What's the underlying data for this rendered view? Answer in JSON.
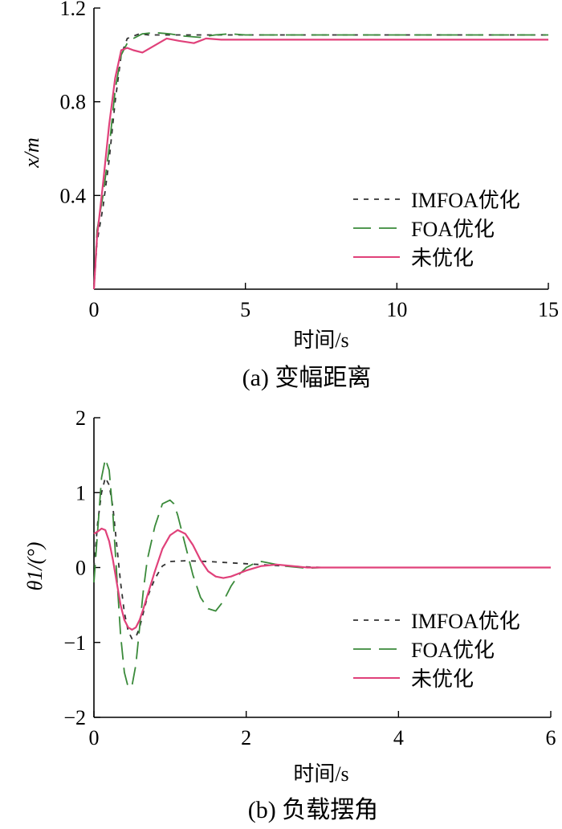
{
  "colors": {
    "imfoa": "#333333",
    "foa": "#3a8a3a",
    "none": "#e0417a",
    "axis": "#000000"
  },
  "chart_data": [
    {
      "type": "line",
      "caption": "(a)  变幅距离",
      "xlabel": "时间/s",
      "ylabel": "x/m",
      "xlim": [
        0,
        15
      ],
      "ylim": [
        0,
        1.2
      ],
      "xticks": [
        "0",
        "5",
        "10",
        "15"
      ],
      "yticks": [
        "0.4",
        "0.8",
        "1.2"
      ],
      "legend_position": "right, lower-middle",
      "series": [
        {
          "name": "IMFOA优化",
          "style": "dotted",
          "x": [
            0,
            0.1,
            0.3,
            0.5,
            0.7,
            0.9,
            1.1,
            1.3,
            1.5,
            1.8,
            2.0,
            3.0,
            5.0,
            10.0,
            15.0
          ],
          "y": [
            0,
            0.2,
            0.35,
            0.55,
            0.8,
            1.0,
            1.07,
            1.08,
            1.09,
            1.085,
            1.085,
            1.085,
            1.085,
            1.085,
            1.085
          ]
        },
        {
          "name": "FOA优化",
          "style": "dashed",
          "x": [
            0,
            0.1,
            0.3,
            0.5,
            0.7,
            0.9,
            1.1,
            1.3,
            1.6,
            2.0,
            2.5,
            3.0,
            3.5,
            4.0,
            4.5,
            5.0,
            10.0,
            15.0
          ],
          "y": [
            0,
            0.25,
            0.4,
            0.6,
            0.85,
            1.0,
            1.05,
            1.07,
            1.09,
            1.095,
            1.09,
            1.08,
            1.075,
            1.085,
            1.09,
            1.085,
            1.085,
            1.085
          ]
        },
        {
          "name": "未优化",
          "style": "solid",
          "x": [
            0,
            0.1,
            0.3,
            0.5,
            0.7,
            0.9,
            1.1,
            1.3,
            1.6,
            2.0,
            2.4,
            2.8,
            3.3,
            3.7,
            4.2,
            5.0,
            10.0,
            15.0
          ],
          "y": [
            0,
            0.22,
            0.45,
            0.7,
            0.9,
            1.02,
            1.03,
            1.02,
            1.01,
            1.04,
            1.07,
            1.06,
            1.05,
            1.07,
            1.065,
            1.065,
            1.065,
            1.065
          ]
        }
      ]
    },
    {
      "type": "line",
      "caption": "(b)  负载摆角",
      "xlabel": "时间/s",
      "ylabel": "θ1/(°)",
      "xlim": [
        0,
        6
      ],
      "ylim": [
        -2,
        2
      ],
      "xticks": [
        "0",
        "2",
        "4",
        "6"
      ],
      "yticks": [
        "2",
        "1",
        "0",
        "−1",
        "−2"
      ],
      "legend_position": "right, lower-middle",
      "series": [
        {
          "name": "IMFOA优化",
          "style": "dotted",
          "x": [
            0,
            0.05,
            0.1,
            0.15,
            0.2,
            0.25,
            0.3,
            0.35,
            0.4,
            0.45,
            0.5,
            0.55,
            0.6,
            0.65,
            0.7,
            0.8,
            0.9,
            1.0,
            1.2,
            1.5,
            2.0,
            2.5,
            3.0,
            6.0
          ],
          "y": [
            0,
            0.6,
            1.0,
            1.2,
            1.1,
            0.8,
            0.3,
            -0.2,
            -0.6,
            -0.85,
            -0.95,
            -0.93,
            -0.8,
            -0.6,
            -0.4,
            -0.15,
            0.02,
            0.08,
            0.09,
            0.08,
            0.05,
            0.02,
            0.0,
            0.0
          ]
        },
        {
          "name": "FOA优化",
          "style": "dashed",
          "x": [
            0,
            0.05,
            0.1,
            0.15,
            0.2,
            0.25,
            0.3,
            0.35,
            0.4,
            0.45,
            0.5,
            0.55,
            0.6,
            0.65,
            0.7,
            0.8,
            0.9,
            1.0,
            1.05,
            1.1,
            1.2,
            1.3,
            1.4,
            1.5,
            1.6,
            1.7,
            1.8,
            1.9,
            2.0,
            2.1,
            2.2,
            2.3,
            2.5,
            2.8,
            3.0,
            6.0
          ],
          "y": [
            -0.2,
            0.5,
            1.2,
            1.45,
            1.3,
            0.7,
            -0.1,
            -0.9,
            -1.4,
            -1.6,
            -1.58,
            -1.3,
            -0.8,
            -0.3,
            0.1,
            0.55,
            0.85,
            0.9,
            0.85,
            0.7,
            0.3,
            -0.1,
            -0.4,
            -0.55,
            -0.58,
            -0.45,
            -0.25,
            -0.1,
            0.0,
            0.05,
            0.08,
            0.06,
            0.02,
            -0.01,
            0.0,
            0.0
          ]
        },
        {
          "name": "未优化",
          "style": "solid",
          "x": [
            0,
            0.05,
            0.1,
            0.15,
            0.2,
            0.25,
            0.3,
            0.35,
            0.4,
            0.45,
            0.5,
            0.55,
            0.6,
            0.65,
            0.7,
            0.8,
            0.9,
            1.0,
            1.1,
            1.2,
            1.3,
            1.4,
            1.5,
            1.6,
            1.7,
            1.8,
            1.9,
            2.0,
            2.2,
            2.4,
            2.6,
            2.8,
            3.0,
            6.0
          ],
          "y": [
            0.45,
            0.48,
            0.52,
            0.5,
            0.35,
            0.1,
            -0.2,
            -0.5,
            -0.7,
            -0.8,
            -0.83,
            -0.8,
            -0.7,
            -0.55,
            -0.38,
            -0.05,
            0.25,
            0.43,
            0.5,
            0.45,
            0.3,
            0.1,
            -0.05,
            -0.12,
            -0.14,
            -0.12,
            -0.08,
            -0.04,
            0.02,
            0.04,
            0.02,
            0.0,
            0.0,
            0.0
          ]
        }
      ]
    }
  ]
}
